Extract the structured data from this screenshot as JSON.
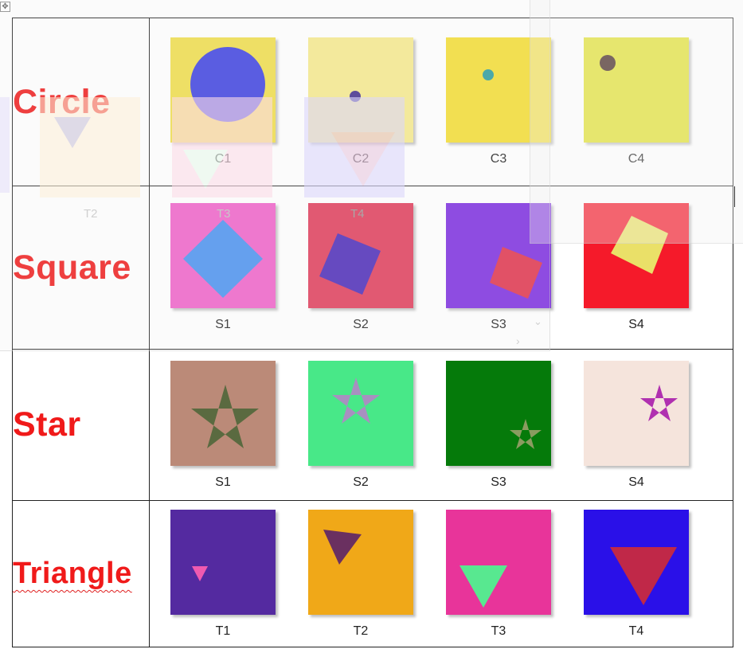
{
  "rows": [
    {
      "label": "Circle",
      "items": [
        {
          "caption": "C1",
          "bg": "#f0dd48",
          "fg": "#3b3fe0",
          "shape": "circle-icon"
        },
        {
          "caption": "C2",
          "bg": "#f6e98c",
          "fg": "#3f2a8a",
          "shape": "circle-icon"
        },
        {
          "caption": "C3",
          "bg": "#f5dd30",
          "fg": "#2a9c9c",
          "shape": "circle-icon"
        },
        {
          "caption": "C4",
          "bg": "#e0e028",
          "fg": "#3a1d16",
          "shape": "circle-icon"
        }
      ]
    },
    {
      "label": "Square",
      "items": [
        {
          "caption": "S1",
          "bg": "#f060c8",
          "fg": "#4890f0",
          "shape": "square-icon"
        },
        {
          "caption": "S2",
          "bg": "#e03a58",
          "fg": "#4a28b8",
          "shape": "square-icon"
        },
        {
          "caption": "S3",
          "bg": "#7a2ae0",
          "fg": "#e0304a",
          "shape": "square-icon"
        },
        {
          "caption": "S4",
          "bg": "#f51a2a",
          "fg": "#eae068",
          "shape": "square-icon"
        }
      ]
    },
    {
      "label": "Star",
      "items": [
        {
          "caption": "S1",
          "bg": "#bb8a78",
          "fg": "#5a6a40",
          "shape": "star-icon"
        },
        {
          "caption": "S2",
          "bg": "#48e888",
          "fg": "#a890c0",
          "shape": "star-icon"
        },
        {
          "caption": "S3",
          "bg": "#057a0a",
          "fg": "#8a9c60",
          "shape": "star-icon"
        },
        {
          "caption": "S4",
          "bg": "#f5e4dc",
          "fg": "#b030b0",
          "shape": "star-icon"
        }
      ]
    },
    {
      "label": "Triangle",
      "items": [
        {
          "caption": "T1",
          "bg": "#542aa0",
          "fg": "#f05ab0",
          "shape": "triangle-icon"
        },
        {
          "caption": "T2",
          "bg": "#f0a818",
          "fg": "#6a3060",
          "shape": "triangle-icon"
        },
        {
          "caption": "T3",
          "bg": "#e8349a",
          "fg": "#58e890",
          "shape": "triangle-icon"
        },
        {
          "caption": "T4",
          "bg": "#2a10e8",
          "fg": "#c02848",
          "shape": "triangle-icon"
        }
      ]
    }
  ],
  "ghost_overlay": {
    "captions": [
      "T2",
      "T3",
      "T4"
    ],
    "colors": [
      "#fdf0d8",
      "#fcdce8",
      "#dcd8fc"
    ]
  }
}
